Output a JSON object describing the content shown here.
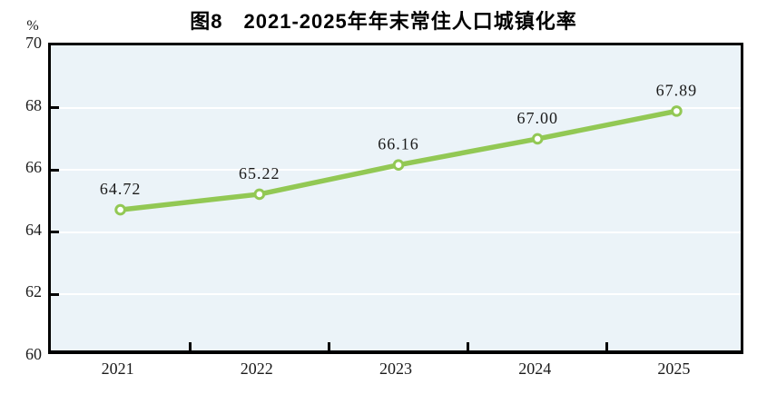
{
  "header": {
    "title": "图8　2021-2025年年末常住人口城镇化率",
    "unit_label": "%"
  },
  "colors": {
    "line": "#92c854",
    "marker_fill": "#ffffff",
    "plot_bg": "#ebf3f8",
    "gridline": "#ffffff",
    "axis": "#000000",
    "text": "#1a1a1a"
  },
  "chart_data": {
    "type": "line",
    "title": "图8　2021-2025年年末常住人口城镇化率",
    "categories": [
      "2021",
      "2022",
      "2023",
      "2024",
      "2025"
    ],
    "values": [
      64.72,
      65.22,
      66.16,
      67.0,
      67.89
    ],
    "point_labels": [
      "64.72",
      "65.22",
      "66.16",
      "67.00",
      "67.89"
    ],
    "ylabel": "%",
    "xlabel": "",
    "ylim": [
      60,
      70
    ],
    "yticks": [
      60,
      62,
      64,
      66,
      68,
      70
    ],
    "grid": "horizontal gridlines on, white on light-blue plot background",
    "legend": "none",
    "marker": "open circle"
  }
}
